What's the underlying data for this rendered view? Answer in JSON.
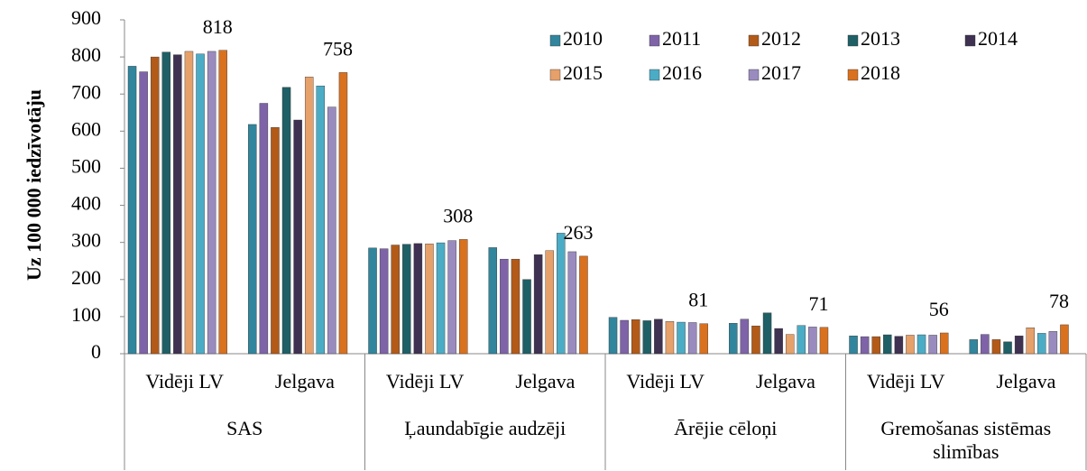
{
  "chart_data": {
    "type": "bar",
    "y_label": "Uz 100 000 iedzīvotāju",
    "categories": [
      "Vidēji LV",
      "Jelgava",
      "Vidēji LV",
      "Jelgava",
      "Vidēji LV",
      "Jelgava",
      "Vidēji LV",
      "Jelgava"
    ],
    "groups": [
      "SAS",
      "Ļaundabīgie audzēji",
      "Ārējie cēloņi",
      "Gremošanas sistēmas slimības"
    ],
    "series": [
      {
        "name": "2010",
        "color": "#31859c",
        "values": [
          775,
          618,
          285,
          286,
          98,
          82,
          48,
          38
        ]
      },
      {
        "name": "2011",
        "color": "#7f63a8",
        "values": [
          760,
          675,
          283,
          255,
          90,
          93,
          46,
          52
        ]
      },
      {
        "name": "2012",
        "color": "#b35a18",
        "values": [
          800,
          610,
          293,
          255,
          92,
          75,
          46,
          38
        ]
      },
      {
        "name": "2013",
        "color": "#1f5f66",
        "values": [
          813,
          718,
          295,
          200,
          89,
          110,
          51,
          32
        ]
      },
      {
        "name": "2014",
        "color": "#3f3151",
        "values": [
          806,
          630,
          297,
          267,
          93,
          68,
          47,
          48
        ]
      },
      {
        "name": "2015",
        "color": "#e6a06a",
        "values": [
          815,
          746,
          296,
          278,
          87,
          52,
          50,
          70
        ]
      },
      {
        "name": "2016",
        "color": "#4bacc6",
        "values": [
          808,
          722,
          299,
          325,
          85,
          76,
          51,
          55
        ]
      },
      {
        "name": "2017",
        "color": "#9a8bbf",
        "values": [
          815,
          665,
          305,
          275,
          84,
          72,
          50,
          60
        ]
      },
      {
        "name": "2018",
        "color": "#d9711f",
        "values": [
          818,
          758,
          308,
          263,
          81,
          71,
          56,
          78
        ],
        "data_labels": true
      }
    ],
    "ylim": [
      0,
      900
    ],
    "yticks": [
      0,
      100,
      200,
      300,
      400,
      500,
      600,
      700,
      800,
      900
    ],
    "legend": "top-right"
  }
}
